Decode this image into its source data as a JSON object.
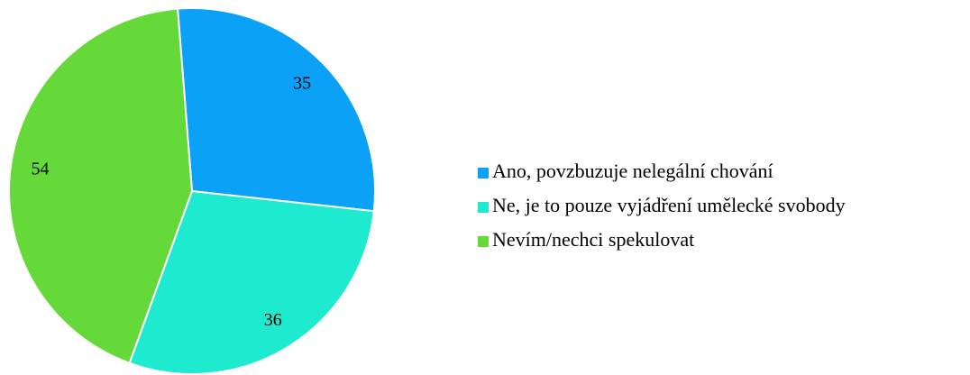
{
  "chart_data": {
    "type": "pie",
    "categories": [
      "Ano, povzbuzuje nelegální chování",
      "Ne, je to pouze vyjádření umělecké svobody",
      "Nevím/nechci spekulovat"
    ],
    "values": [
      35,
      36,
      54
    ],
    "colors": [
      "#0aa1f7",
      "#1deacf",
      "#66d93a"
    ],
    "legend": "right"
  }
}
